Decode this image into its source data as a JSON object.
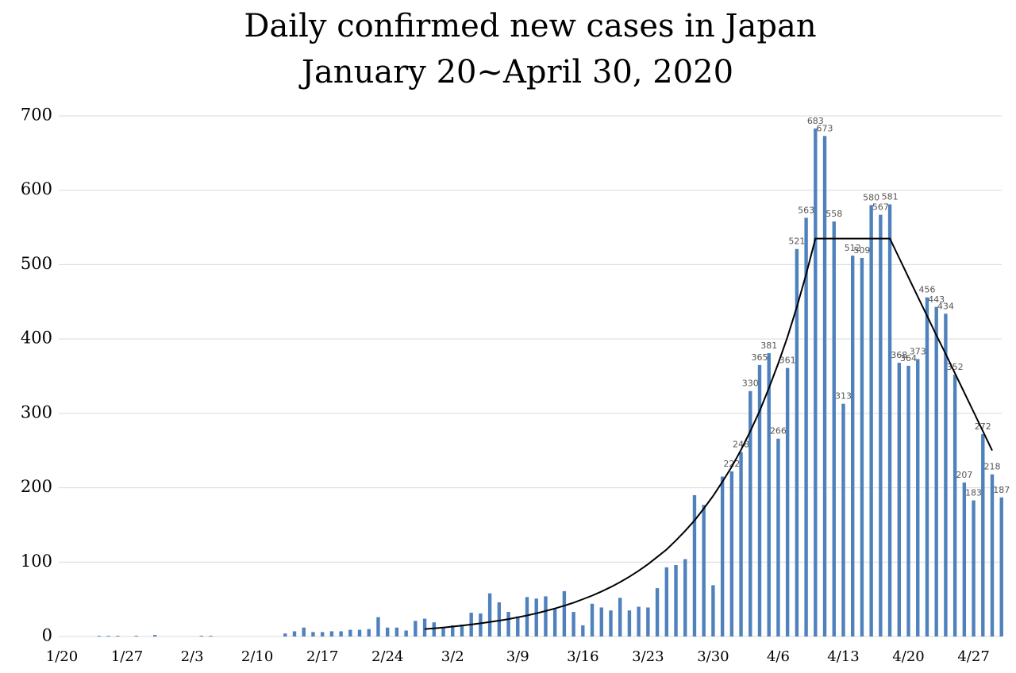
{
  "chart_data": {
    "type": "bar",
    "title": "Daily confirmed new cases in Japan",
    "subtitle": "January 20~April 30, 2020",
    "categories": [
      "1/20",
      null,
      null,
      null,
      null,
      null,
      null,
      "1/27",
      null,
      null,
      null,
      null,
      null,
      null,
      "2/3",
      null,
      null,
      null,
      null,
      null,
      null,
      "2/10",
      null,
      null,
      null,
      null,
      null,
      null,
      "2/17",
      null,
      null,
      null,
      null,
      null,
      null,
      "2/24",
      null,
      null,
      null,
      null,
      null,
      null,
      "3/2",
      null,
      null,
      null,
      null,
      null,
      null,
      "3/9",
      null,
      null,
      null,
      null,
      null,
      null,
      "3/16",
      null,
      null,
      null,
      null,
      null,
      null,
      "3/23",
      null,
      null,
      null,
      null,
      null,
      null,
      "3/30",
      null,
      null,
      null,
      null,
      null,
      null,
      "4/6",
      null,
      null,
      null,
      null,
      null,
      null,
      "4/13",
      null,
      null,
      null,
      null,
      null,
      null,
      "4/20",
      null,
      null,
      null,
      null,
      null,
      null,
      "4/27",
      null,
      null,
      null
    ],
    "values": [
      0,
      0,
      0,
      0,
      1,
      1,
      1,
      0,
      1,
      0,
      2,
      0,
      0,
      0,
      0,
      1,
      1,
      0,
      0,
      0,
      0,
      0,
      0,
      0,
      4,
      7,
      12,
      6,
      6,
      7,
      7,
      9,
      9,
      10,
      26,
      12,
      12,
      8,
      21,
      24,
      19,
      11,
      15,
      16,
      32,
      31,
      58,
      46,
      33,
      27,
      53,
      51,
      54,
      37,
      61,
      33,
      15,
      44,
      39,
      35,
      52,
      35,
      40,
      39,
      65,
      93,
      96,
      104,
      190,
      177,
      69,
      215,
      222,
      248,
      330,
      365,
      381,
      266,
      361,
      521,
      563,
      683,
      673,
      558,
      313,
      512,
      509,
      580,
      567,
      581,
      368,
      364,
      373,
      456,
      443,
      434,
      352,
      207,
      183,
      272,
      218,
      187
    ],
    "value_labels": [
      null,
      null,
      null,
      null,
      null,
      null,
      null,
      null,
      null,
      null,
      null,
      null,
      null,
      null,
      null,
      null,
      null,
      null,
      null,
      null,
      null,
      null,
      null,
      null,
      null,
      null,
      null,
      null,
      null,
      null,
      null,
      null,
      null,
      null,
      null,
      null,
      null,
      null,
      null,
      null,
      null,
      null,
      null,
      null,
      null,
      null,
      null,
      null,
      null,
      null,
      null,
      null,
      null,
      null,
      null,
      null,
      null,
      null,
      null,
      null,
      null,
      null,
      null,
      null,
      null,
      null,
      null,
      null,
      null,
      null,
      null,
      null,
      "222",
      "248",
      "330",
      "365",
      "381",
      "266",
      "361",
      "521",
      "563",
      "683",
      "673",
      "558",
      "313",
      "512",
      "509",
      "580",
      "567",
      "581",
      "368",
      "364",
      "373",
      "456",
      "443",
      "434",
      "352",
      "207",
      "183",
      "272",
      "218",
      "187"
    ],
    "color": "#4f81bd",
    "trend": {
      "color": "#000000",
      "values": [
        null,
        null,
        null,
        null,
        null,
        null,
        null,
        null,
        null,
        null,
        null,
        null,
        null,
        null,
        null,
        null,
        null,
        null,
        null,
        null,
        null,
        null,
        null,
        null,
        null,
        null,
        null,
        null,
        null,
        null,
        null,
        null,
        null,
        null,
        null,
        null,
        null,
        null,
        null,
        10,
        11,
        12.1,
        13.3,
        14.6,
        16.1,
        17.7,
        19.4,
        21.3,
        23.4,
        25.8,
        28.3,
        31.2,
        34.2,
        37.7,
        41.4,
        45.5,
        50.1,
        55,
        60.5,
        66.5,
        73.1,
        80.4,
        88.4,
        97.2,
        107,
        117,
        129,
        142,
        156,
        172,
        189,
        208,
        228,
        251,
        276,
        303,
        334,
        367,
        403,
        443,
        487,
        535,
        535,
        535,
        535,
        535,
        535,
        535,
        535,
        535,
        509,
        483,
        457,
        431,
        405,
        380,
        354,
        328,
        302,
        276,
        250,
        null
      ]
    },
    "ylim": [
      0,
      700
    ],
    "yticks": [
      0,
      100,
      200,
      300,
      400,
      500,
      600,
      700
    ],
    "grid": true
  }
}
